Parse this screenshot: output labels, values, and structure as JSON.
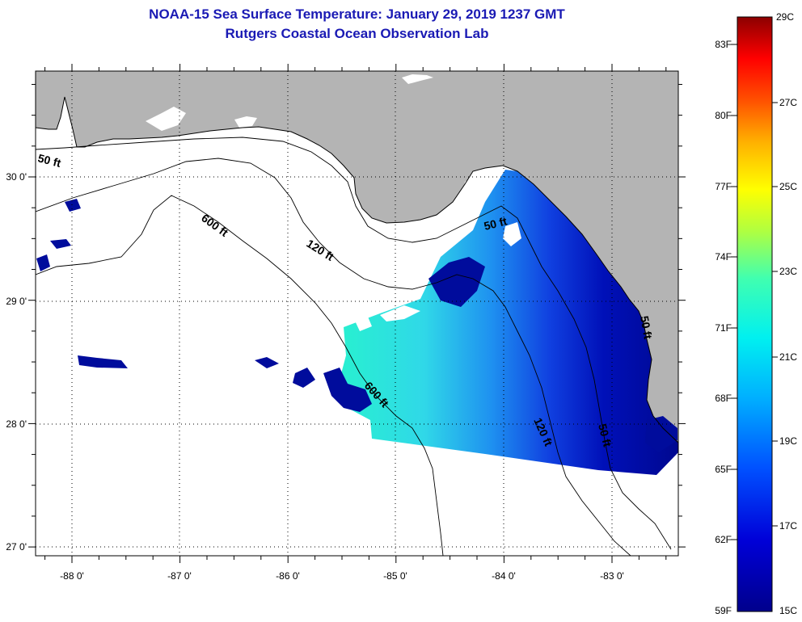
{
  "title": "NOAA-15 Sea Surface Temperature:  January 29, 2019 1237 GMT",
  "subtitle": "Rutgers Coastal Ocean Observation Lab",
  "map": {
    "lon_ticks": [
      "-88 0'",
      "-87 0'",
      "-86 0'",
      "-85 0'",
      "-84 0'",
      "-83 0'"
    ],
    "lat_ticks": [
      "30 0'",
      "29 0'",
      "28 0'",
      "27 0'"
    ],
    "contour_labels": [
      "50 ft",
      "600 ft",
      "120 ft",
      "50 ft",
      "600 ft",
      "120 ft",
      "50 ft",
      "50 ft"
    ],
    "colors": {
      "land": "#b4b4b4",
      "ocean_nodata": "#ffffff"
    }
  },
  "colorbar": {
    "fahrenheit_labels": [
      "83F",
      "80F",
      "77F",
      "74F",
      "71F",
      "68F",
      "65F",
      "62F",
      "59F"
    ],
    "celsius_labels": [
      "29C",
      "27C",
      "25C",
      "23C",
      "21C",
      "19C",
      "17C",
      "15C"
    ],
    "range_c": [
      15,
      29
    ],
    "range_f": [
      59,
      84.2
    ]
  }
}
